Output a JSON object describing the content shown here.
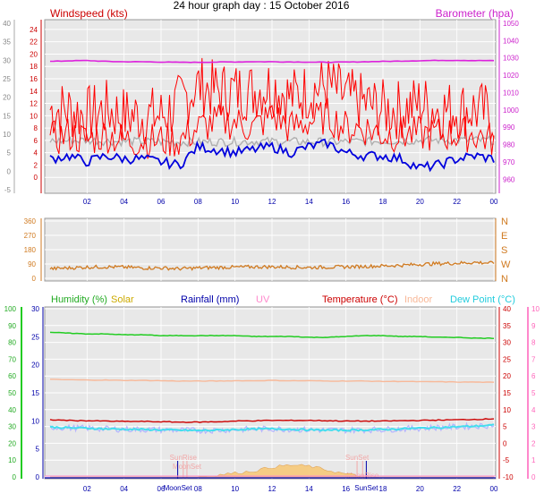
{
  "title": "24 hour graph day : 15 October 2016",
  "colors": {
    "windspeed": "#ff0000",
    "gust": "#ff0000",
    "wind_avg": "#0000dd",
    "barometer": "#dd22dd",
    "barometer_line": "#a0a0a0",
    "direction": "#d07a20",
    "humidity": "#22cc22",
    "solar": "#ddbb00",
    "rainfall": "#0000aa",
    "uv": "#ff88cc",
    "temperature": "#cc0000",
    "indoor": "#f8b898",
    "dewpoint": "#44ddee",
    "plot_bg": "#e8e8e8",
    "grid": "#ffffff"
  },
  "chart_data": [
    {
      "type": "line",
      "name": "wind-barometer",
      "xlabel": "",
      "x_tick_labels": [
        "02",
        "04",
        "06",
        "08",
        "10",
        "12",
        "14",
        "16",
        "18",
        "20",
        "22",
        "00"
      ],
      "legend_left": "Windspeed (kts)",
      "legend_right": "Barometer (hpa)",
      "y_left": {
        "label": "Windspeed (kts)",
        "min": -2,
        "max": 25,
        "ticks": [
          "0",
          "2",
          "4",
          "6",
          "8",
          "10",
          "12",
          "14",
          "16",
          "18",
          "20",
          "22",
          "24"
        ]
      },
      "y_left_outer": {
        "min": -5,
        "max": 40,
        "ticks": [
          "-5",
          "0",
          "5",
          "10",
          "15",
          "20",
          "25",
          "30",
          "35",
          "40"
        ]
      },
      "y_right": {
        "label": "Barometer (hpa)",
        "min": 955,
        "max": 1050,
        "ticks": [
          "960",
          "970",
          "980",
          "990",
          "1000",
          "1010",
          "1020",
          "1030",
          "1040",
          "1050"
        ]
      },
      "x_hours": [
        0,
        1,
        2,
        3,
        4,
        5,
        6,
        7,
        8,
        9,
        10,
        11,
        12,
        13,
        14,
        15,
        16,
        17,
        18,
        19,
        20,
        21,
        22,
        23,
        24
      ],
      "series": [
        {
          "name": "Windspeed",
          "values": [
            6,
            7,
            6,
            7,
            6,
            6,
            6,
            6,
            8,
            9,
            9,
            8,
            10,
            8,
            9,
            10,
            8,
            8,
            7,
            7,
            7,
            7,
            7,
            7,
            6
          ]
        },
        {
          "name": "Gust",
          "values": [
            11,
            11,
            10,
            11,
            10,
            10,
            10,
            12,
            15,
            14,
            14,
            14,
            15,
            13,
            14,
            15,
            13,
            12,
            11,
            11,
            12,
            11,
            11,
            11,
            10
          ]
        },
        {
          "name": "Average",
          "values": [
            3,
            3.5,
            2.5,
            3.5,
            3,
            3,
            2.5,
            2,
            5,
            4.5,
            4,
            4.5,
            5,
            4,
            5,
            5.5,
            4,
            3.5,
            3.5,
            3,
            1.5,
            2,
            3,
            3.5,
            3
          ]
        },
        {
          "name": "Barometer",
          "values": [
            1028,
            1028.3,
            1028.5,
            1028,
            1027.8,
            1027.8,
            1027.6,
            1027.5,
            1027.5,
            1027.6,
            1027.7,
            1027.8,
            1027.8,
            1027.7,
            1027.6,
            1027.5,
            1027.6,
            1027.8,
            1028,
            1028.2,
            1028.4,
            1028.6,
            1028.6,
            1028.5,
            1028.4
          ]
        }
      ]
    },
    {
      "type": "line",
      "name": "wind-direction",
      "y_left": {
        "min": 0,
        "max": 360,
        "ticks": [
          "0",
          "90",
          "180",
          "270",
          "360"
        ]
      },
      "y_right_labels": [
        "N",
        "E",
        "S",
        "W",
        "N"
      ],
      "x_hours": [
        0,
        1,
        2,
        3,
        4,
        5,
        6,
        7,
        8,
        9,
        10,
        11,
        12,
        13,
        14,
        15,
        16,
        17,
        18,
        19,
        20,
        21,
        22,
        23,
        24
      ],
      "series": [
        {
          "name": "Direction",
          "values": [
            60,
            65,
            70,
            72,
            70,
            65,
            65,
            60,
            65,
            68,
            70,
            72,
            72,
            70,
            68,
            70,
            72,
            75,
            78,
            82,
            88,
            92,
            95,
            100,
            95
          ]
        }
      ]
    },
    {
      "type": "line",
      "name": "humidity-temperature",
      "legend": [
        "Humidity (%)",
        "Solar",
        "Rainfall (mm)",
        "UV",
        "Temperature (°C)",
        "Indoor",
        "Dew Point (°C)"
      ],
      "y_humidity": {
        "min": 0,
        "max": 100,
        "ticks": [
          "0",
          "10",
          "20",
          "30",
          "40",
          "50",
          "60",
          "70",
          "80",
          "90",
          "100"
        ]
      },
      "y_rainfall": {
        "min": 0,
        "max": 30,
        "ticks": [
          "0",
          "5",
          "10",
          "15",
          "20",
          "25",
          "30"
        ]
      },
      "y_temperature": {
        "min": -10,
        "max": 40,
        "ticks": [
          "-10",
          "-5",
          "0",
          "5",
          "10",
          "15",
          "20",
          "25",
          "30",
          "35",
          "40"
        ]
      },
      "y_uv": {
        "min": 0,
        "max": 10,
        "ticks": [
          "0",
          "1",
          "2",
          "3",
          "4",
          "5",
          "6",
          "7",
          "8",
          "9",
          "10"
        ]
      },
      "annotations": [
        "MoonSet",
        "MoonSet",
        "SunRise",
        "SunSet",
        "SunSet",
        "MoonRise"
      ],
      "x_hours": [
        0,
        1,
        2,
        3,
        4,
        5,
        6,
        7,
        8,
        9,
        10,
        11,
        12,
        13,
        14,
        15,
        16,
        17,
        18,
        19,
        20,
        21,
        22,
        23,
        24
      ],
      "series": [
        {
          "name": "Humidity",
          "values": [
            86,
            85.5,
            85,
            85,
            84.5,
            84.5,
            84,
            84,
            84,
            84,
            84,
            83.5,
            83.5,
            83.5,
            83,
            83,
            83.5,
            84,
            84,
            83.5,
            83.5,
            83,
            83,
            82.5,
            82.5
          ]
        },
        {
          "name": "Temperature",
          "values": [
            7,
            6.8,
            6.7,
            6.6,
            6.5,
            6.5,
            6.4,
            6.3,
            6.3,
            6.4,
            6.6,
            6.7,
            6.8,
            6.8,
            6.8,
            6.7,
            6.6,
            6.6,
            6.6,
            6.7,
            6.8,
            6.9,
            7,
            7.1,
            7.3
          ]
        },
        {
          "name": "Indoor",
          "values": [
            19,
            18.9,
            18.8,
            18.8,
            18.7,
            18.7,
            18.6,
            18.5,
            18.5,
            18.5,
            18.6,
            18.6,
            18.7,
            18.6,
            18.6,
            18.5,
            18.5,
            18.5,
            18.4,
            18.4,
            18.3,
            18.3,
            18.2,
            18.2,
            18.1
          ]
        },
        {
          "name": "Dew Point",
          "values": [
            4.8,
            4.6,
            4.5,
            4.3,
            4.2,
            4.1,
            4.0,
            3.9,
            3.8,
            3.9,
            4.1,
            4.2,
            4.3,
            4.2,
            4.0,
            3.9,
            3.9,
            4.0,
            4.1,
            4.3,
            4.5,
            4.7,
            4.9,
            5.1,
            5.4
          ]
        },
        {
          "name": "Solar",
          "values": [
            0,
            0,
            0,
            0,
            0,
            0,
            0,
            0,
            0,
            2,
            4,
            6,
            10,
            12,
            11,
            7,
            3,
            0,
            0,
            0,
            0,
            0,
            0,
            0,
            0
          ]
        },
        {
          "name": "Rainfall",
          "values": [
            0,
            0,
            0,
            0,
            0,
            0,
            0,
            0,
            0,
            0,
            0,
            0,
            0,
            0,
            0,
            0,
            0,
            0,
            0,
            0,
            0,
            0,
            0,
            0,
            0
          ]
        },
        {
          "name": "UV",
          "values": [
            0,
            0,
            0,
            0,
            0,
            0,
            0,
            0,
            0,
            0,
            0,
            0,
            0,
            0,
            0,
            0,
            0,
            0,
            0,
            0,
            0,
            0,
            0,
            0,
            0
          ]
        }
      ]
    }
  ]
}
